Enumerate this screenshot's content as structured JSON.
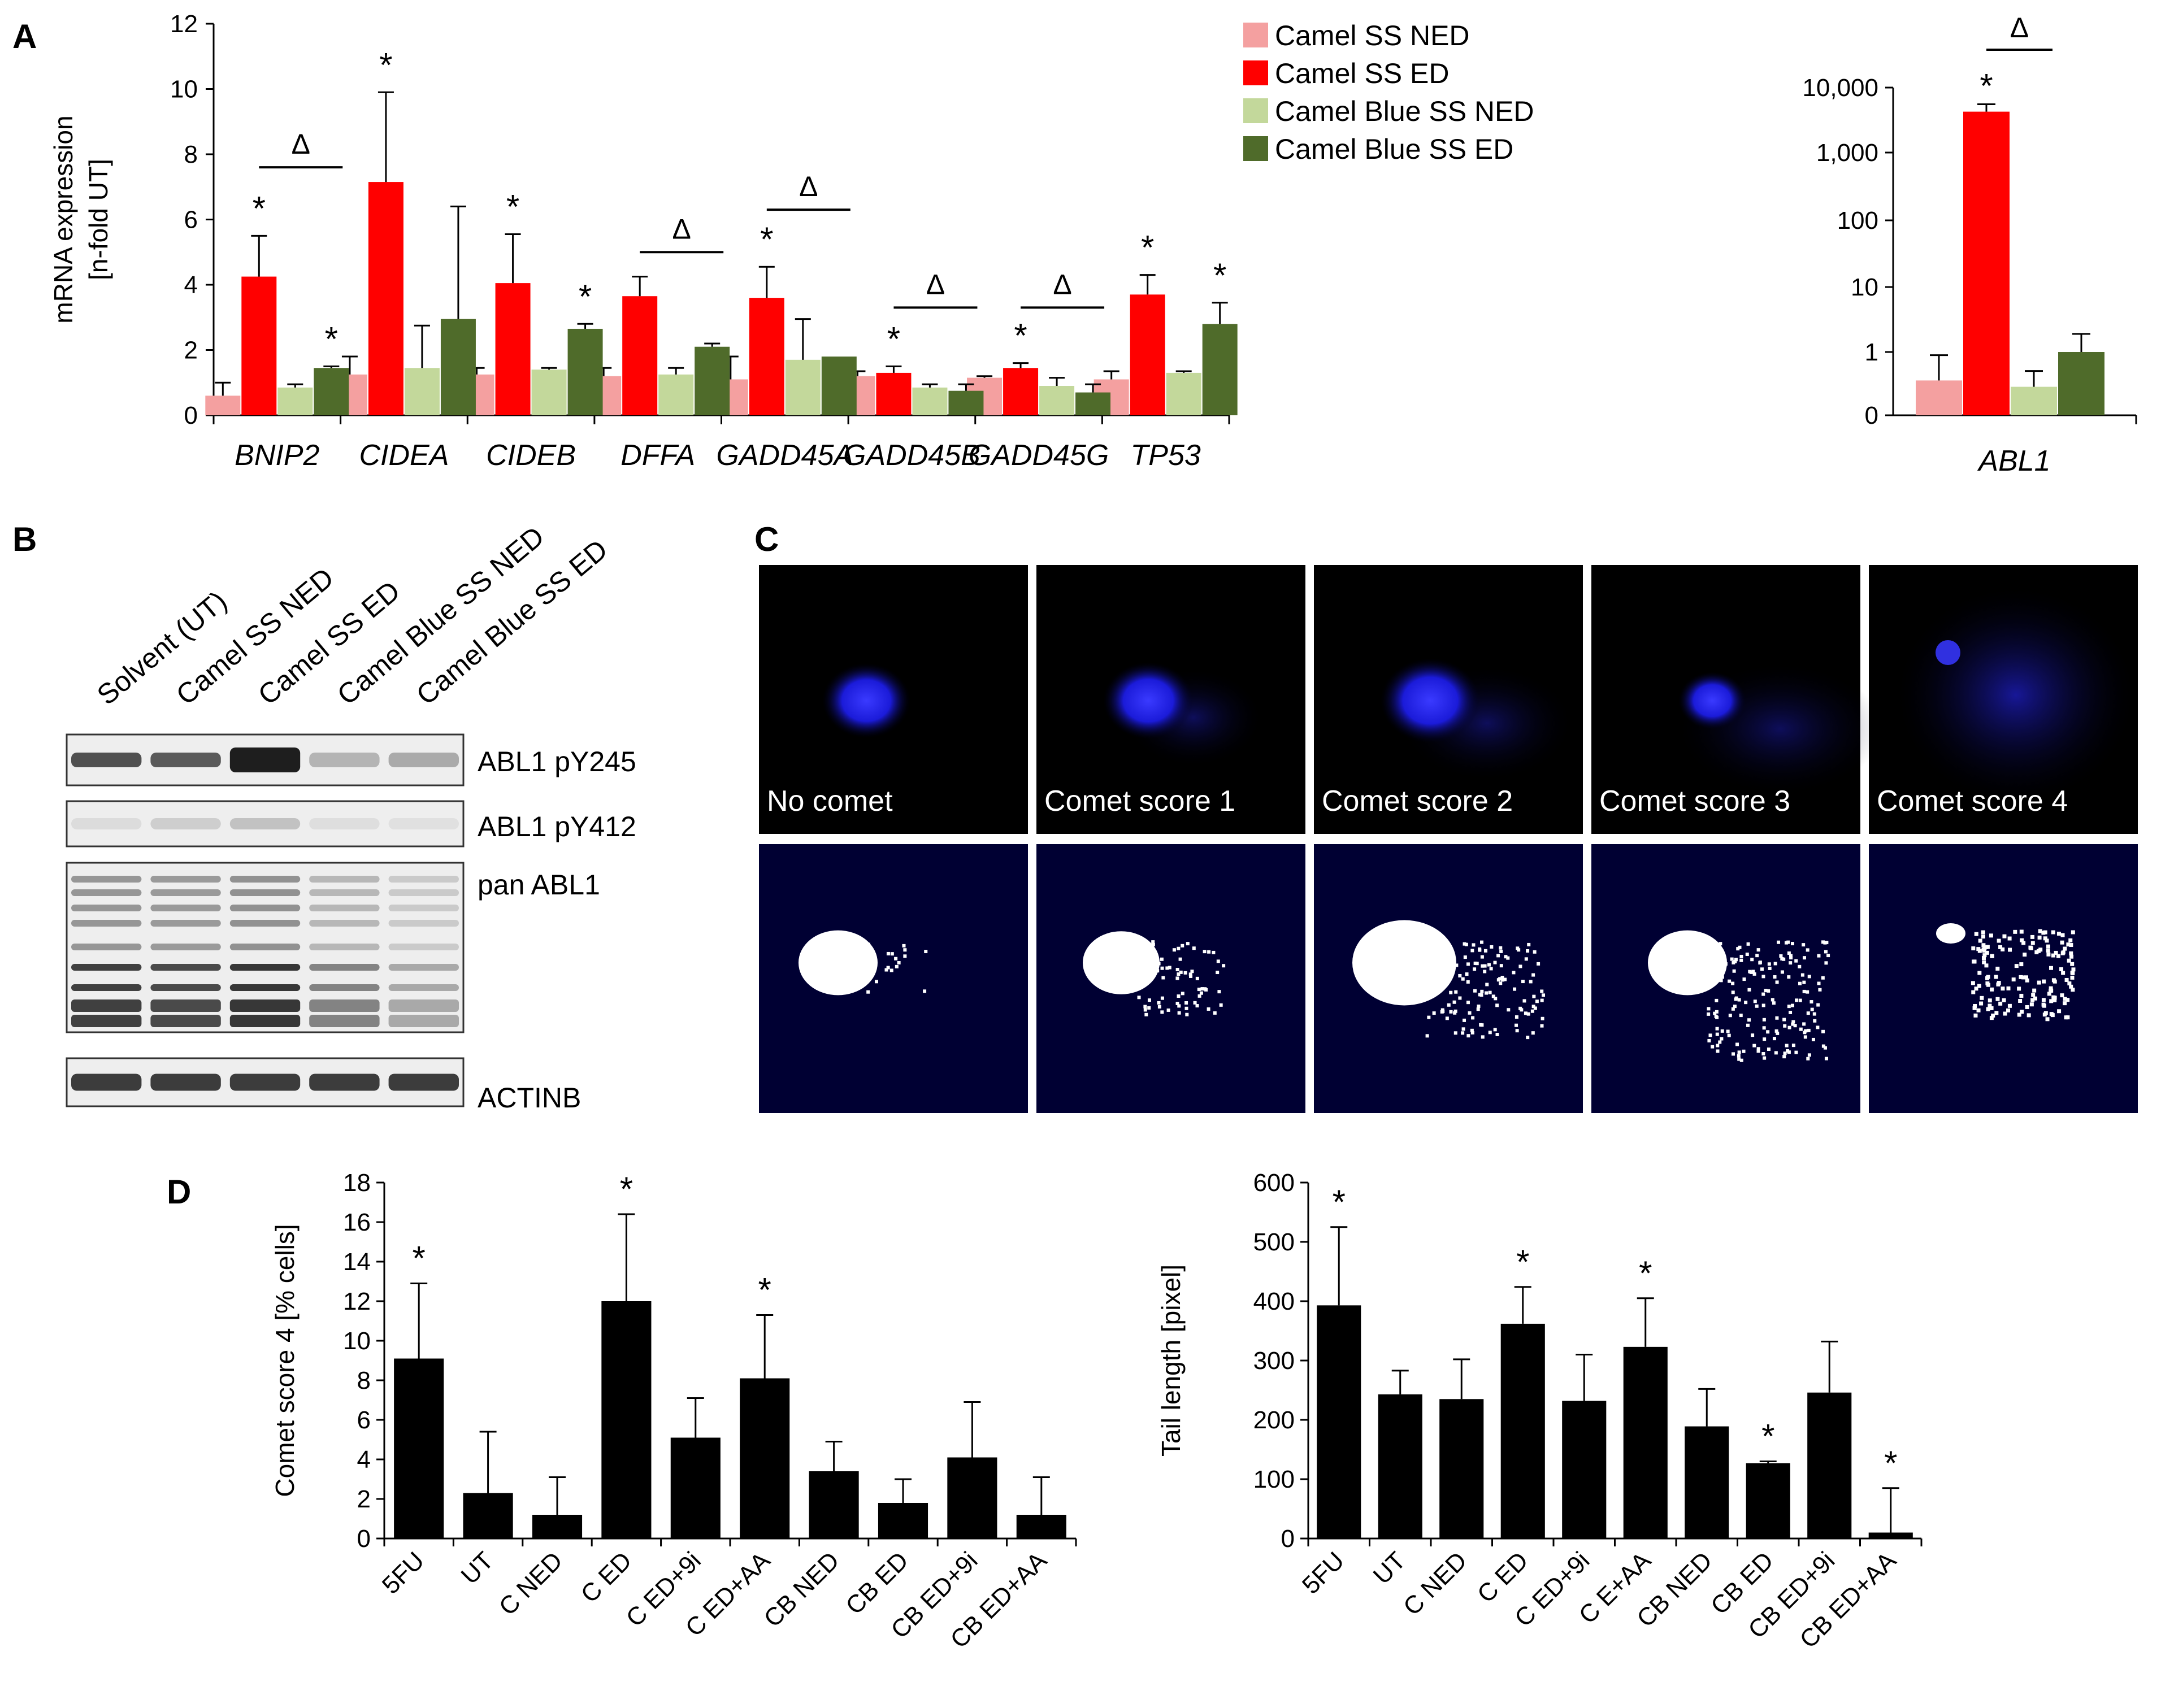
{
  "panels": {
    "a": "A",
    "b": "B",
    "c": "C",
    "d": "D"
  },
  "colors": {
    "camel_ss_ned": "#f4a0a0",
    "camel_ss_ed": "#ff0000",
    "camel_blue_ss_ned": "#c3d89b",
    "camel_blue_ss_ed": "#4f6b2a",
    "black_bar": "#000000"
  },
  "chart_data": [
    {
      "id": "A-linear",
      "type": "bar",
      "ylabel_lines": [
        "mRNA expression",
        "[n-fold UT]"
      ],
      "ylim": [
        0,
        12
      ],
      "yticks": [
        0,
        2,
        4,
        6,
        8,
        10,
        12
      ],
      "categories": [
        "BNIP2",
        "CIDEA",
        "CIDEB",
        "DFFA",
        "GADD45A",
        "GADD45B",
        "GADD45G",
        "TP53"
      ],
      "series": [
        {
          "name": "Camel SS NED",
          "values": [
            0.6,
            1.25,
            1.25,
            1.2,
            1.1,
            1.2,
            1.15,
            1.1
          ],
          "errors": [
            0.4,
            0.55,
            0.2,
            0.25,
            0.7,
            0.15,
            0.05,
            0.25
          ]
        },
        {
          "name": "Camel SS ED",
          "values": [
            4.25,
            7.15,
            4.05,
            3.65,
            3.6,
            1.3,
            1.45,
            3.7
          ],
          "errors": [
            1.25,
            2.75,
            1.5,
            0.6,
            0.95,
            0.2,
            0.15,
            0.6
          ]
        },
        {
          "name": "Camel Blue SS NED",
          "values": [
            0.85,
            1.45,
            1.4,
            1.25,
            1.7,
            0.85,
            0.9,
            1.3
          ],
          "errors": [
            0.1,
            1.3,
            0.05,
            0.2,
            1.25,
            0.1,
            0.25,
            0.05
          ]
        },
        {
          "name": "Camel Blue SS ED",
          "values": [
            1.45,
            2.95,
            2.65,
            2.1,
            1.8,
            0.75,
            0.7,
            2.8
          ],
          "errors": [
            0.05,
            3.45,
            0.15,
            0.1,
            0.0,
            0.2,
            0.25,
            0.65
          ]
        }
      ],
      "annotations": [
        {
          "text": "*",
          "category": "BNIP2",
          "series": 1
        },
        {
          "text": "*",
          "category": "BNIP2",
          "series": 3
        },
        {
          "text": "*",
          "category": "CIDEA",
          "series": 1
        },
        {
          "text": "*",
          "category": "CIDEB",
          "series": 1
        },
        {
          "text": "*",
          "category": "CIDEB",
          "series": 3
        },
        {
          "text": "*",
          "category": "GADD45A",
          "series": 1
        },
        {
          "text": "*",
          "category": "GADD45B",
          "series": 1
        },
        {
          "text": "*",
          "category": "GADD45G",
          "series": 1
        },
        {
          "text": "*",
          "category": "TP53",
          "series": 1
        },
        {
          "text": "*",
          "category": "TP53",
          "series": 3
        }
      ],
      "delta_brackets": [
        {
          "category": "BNIP2",
          "from_series": 1,
          "to_series": 3,
          "y": 7.6
        },
        {
          "category": "DFFA",
          "from_series": 1,
          "to_series": 3,
          "y": 5.0
        },
        {
          "category": "GADD45A",
          "from_series": 1,
          "to_series": 3,
          "y": 6.3
        },
        {
          "category": "GADD45B",
          "from_series": 1,
          "to_series": 3,
          "y": 3.3
        },
        {
          "category": "GADD45G",
          "from_series": 1,
          "to_series": 3,
          "y": 3.3
        }
      ],
      "delta_symbol": "Δ",
      "legend": [
        "Camel SS NED",
        "Camel SS ED",
        "Camel Blue SS NED",
        "Camel Blue SS ED"
      ],
      "legend_position": "top-right"
    },
    {
      "id": "A-log",
      "type": "bar",
      "scale": "log",
      "ylim_labels": [
        "0",
        "1",
        "10",
        "100",
        "1,000",
        "10,000"
      ],
      "categories": [
        "ABL1"
      ],
      "series": [
        {
          "name": "Camel SS NED",
          "values": [
            0.55
          ],
          "errors_upper": [
            0.95
          ]
        },
        {
          "name": "Camel SS ED",
          "values": [
            5000
          ],
          "errors_upper": [
            6500
          ]
        },
        {
          "name": "Camel Blue SS NED",
          "values": [
            0.45
          ],
          "errors_upper": [
            0.7
          ]
        },
        {
          "name": "Camel Blue SS ED",
          "values": [
            1.0
          ],
          "errors_upper": [
            1.9
          ]
        }
      ],
      "annotations": [
        {
          "text": "*",
          "category": "ABL1",
          "series": 1
        }
      ],
      "delta_brackets": [
        {
          "category": "ABL1",
          "from_series": 1,
          "to_series": 3,
          "y": 18000
        }
      ]
    },
    {
      "id": "D-left",
      "type": "bar",
      "ylabel": "Comet score 4 [% cells]",
      "ylim": [
        0,
        18
      ],
      "yticks": [
        0,
        2,
        4,
        6,
        8,
        10,
        12,
        14,
        16,
        18
      ],
      "categories": [
        "5FU",
        "UT",
        "C NED",
        "C ED",
        "C ED+9i",
        "C ED+AA",
        "CB NED",
        "CB ED",
        "CB ED+9i",
        "CB ED+AA"
      ],
      "values": [
        9.1,
        2.3,
        1.2,
        12.0,
        5.1,
        8.1,
        3.4,
        1.8,
        4.1,
        1.2
      ],
      "errors": [
        3.8,
        3.1,
        1.9,
        4.4,
        2.0,
        3.2,
        1.5,
        1.2,
        2.8,
        1.9
      ],
      "significant": [
        true,
        false,
        false,
        true,
        false,
        true,
        false,
        false,
        false,
        false
      ],
      "star": "*"
    },
    {
      "id": "D-right",
      "type": "bar",
      "ylabel": "Tail length [pixel]",
      "ylim": [
        0,
        600
      ],
      "yticks": [
        0,
        100,
        200,
        300,
        400,
        500,
        600
      ],
      "categories": [
        "5FU",
        "UT",
        "C NED",
        "C ED",
        "C ED+9i",
        "C E+AA",
        "CB NED",
        "CB ED",
        "CB ED+9i",
        "CB ED+AA"
      ],
      "values": [
        393,
        243,
        235,
        362,
        232,
        323,
        189,
        127,
        246,
        10
      ],
      "errors": [
        132,
        40,
        67,
        62,
        78,
        82,
        63,
        3,
        86,
        75
      ],
      "significant": [
        true,
        false,
        false,
        true,
        false,
        true,
        false,
        true,
        false,
        true
      ],
      "star": "*"
    }
  ],
  "western_blot": {
    "lanes": [
      "Solvent (UT)",
      "Camel SS NED",
      "Camel SS ED",
      "Camel Blue SS NED",
      "Camel Blue SS ED"
    ],
    "bands": [
      {
        "label": "ABL1 pY245",
        "intensity": [
          0.75,
          0.7,
          1.0,
          0.25,
          0.3
        ]
      },
      {
        "label": "ABL1 pY412",
        "intensity": [
          0.05,
          0.12,
          0.18,
          0.04,
          0.03
        ]
      },
      {
        "label": "pan ABL1",
        "intensity": [
          0.9,
          0.85,
          0.95,
          0.55,
          0.35
        ]
      },
      {
        "label": "ACTINB",
        "intensity": [
          0.85,
          0.85,
          0.85,
          0.85,
          0.85
        ]
      }
    ]
  },
  "comet": {
    "labels": [
      "No comet",
      "Comet score 1",
      "Comet score 2",
      "Comet score 3",
      "Comet score 4"
    ]
  }
}
